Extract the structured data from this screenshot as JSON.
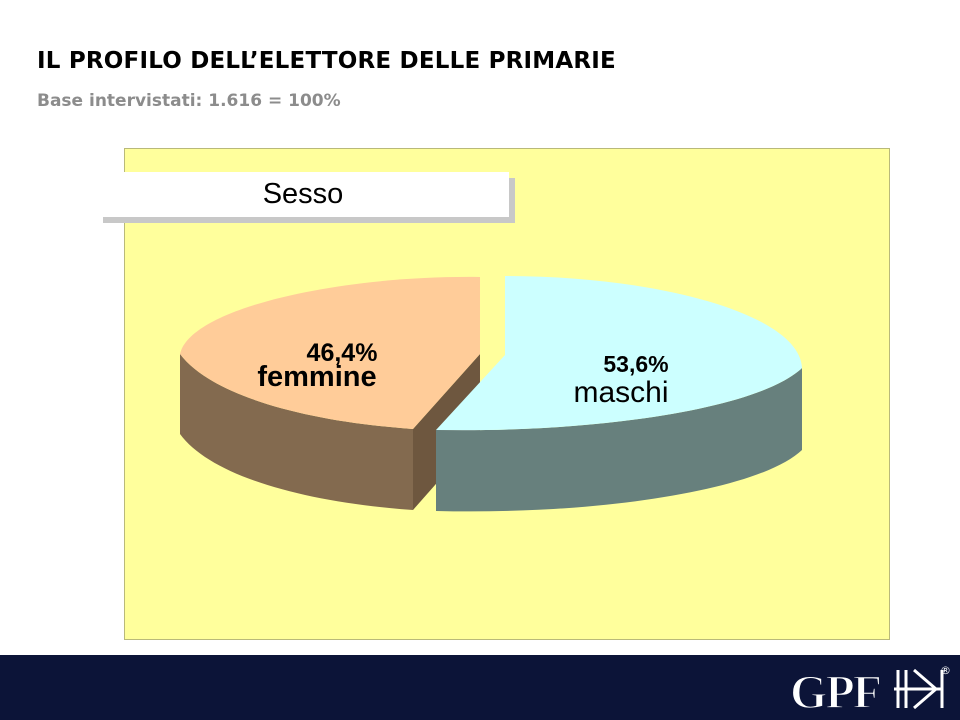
{
  "slide": {
    "title": "IL PROFILO DELL’ELETTORE DELLE PRIMARIE",
    "subtitle": "Base intervistati: 1.616 = 100%"
  },
  "chart_data": {
    "type": "pie",
    "title": "Sesso",
    "slices": [
      {
        "label": "femmine",
        "value": 46.4,
        "value_label": "46,4%",
        "top_color": "#ffcc99",
        "side_color": "#836a4f"
      },
      {
        "label": "maschi",
        "value": 53.6,
        "value_label": "53,6%",
        "top_color": "#ccffff",
        "side_color": "#67807d"
      }
    ]
  },
  "colors": {
    "panel_background": "#ffff9c",
    "footer_background": "#0c1438",
    "logo": "#ffffff"
  },
  "footer": {
    "logo_text": "GPF",
    "logo_mark": "®"
  }
}
